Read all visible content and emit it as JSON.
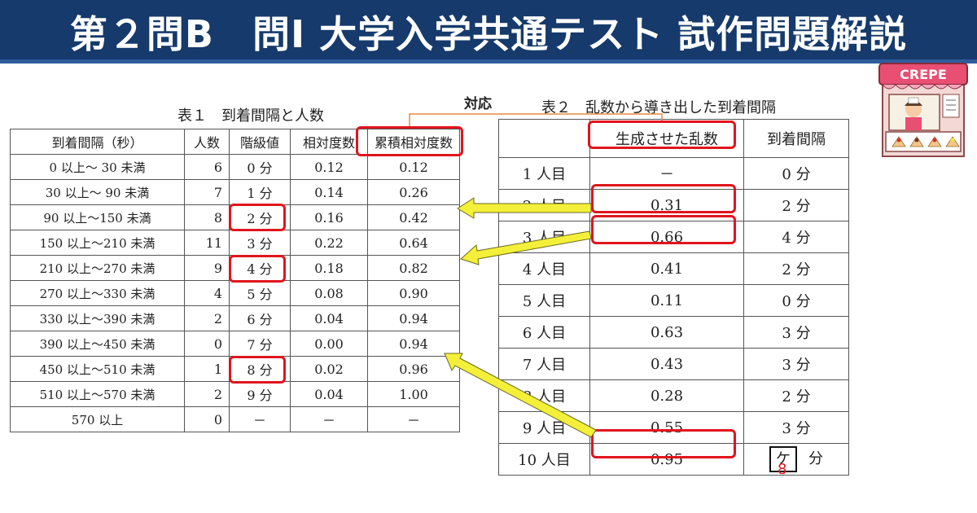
{
  "banner": {
    "title": "第２問B　問I 大学入学共通テスト 試作問題解説"
  },
  "table1": {
    "caption": "表１　到着間隔と人数",
    "headers": [
      "到着間隔（秒）",
      "人数",
      "階級値",
      "相対度数",
      "累積相対度数"
    ],
    "rows": [
      [
        "0 以上～ 30 未満",
        "6",
        "0 分",
        "0.12",
        "0.12"
      ],
      [
        "30 以上～ 90 未満",
        "7",
        "1 分",
        "0.14",
        "0.26"
      ],
      [
        "90 以上～150 未満",
        "8",
        "2 分",
        "0.16",
        "0.42"
      ],
      [
        "150 以上～210 未満",
        "11",
        "3 分",
        "0.22",
        "0.64"
      ],
      [
        "210 以上～270 未満",
        "9",
        "4 分",
        "0.18",
        "0.82"
      ],
      [
        "270 以上～330 未満",
        "4",
        "5 分",
        "0.08",
        "0.90"
      ],
      [
        "330 以上～390 未満",
        "2",
        "6 分",
        "0.04",
        "0.94"
      ],
      [
        "390 以上～450 未満",
        "0",
        "7 分",
        "0.00",
        "0.94"
      ],
      [
        "450 以上～510 未満",
        "1",
        "8 分",
        "0.02",
        "0.96"
      ],
      [
        "510 以上～570 未満",
        "2",
        "9 分",
        "0.04",
        "1.00"
      ],
      [
        "570 以上",
        "0",
        "－",
        "－",
        "－"
      ]
    ]
  },
  "table2": {
    "caption": "表２　乱数から導き出した到着間隔",
    "headers": [
      "",
      "生成させた乱数",
      "到着間隔"
    ],
    "rows": [
      [
        "1 人目",
        "－",
        "0 分"
      ],
      [
        "2 人目",
        "0.31",
        "2 分"
      ],
      [
        "3 人目",
        "0.66",
        "4 分"
      ],
      [
        "4 人目",
        "0.41",
        "2 分"
      ],
      [
        "5 人目",
        "0.11",
        "0 分"
      ],
      [
        "6 人目",
        "0.63",
        "3 分"
      ],
      [
        "7 人目",
        "0.43",
        "3 分"
      ],
      [
        "8 人目",
        "0.28",
        "2 分"
      ],
      [
        "9 人目",
        "0.55",
        "3 分"
      ],
      [
        "10 人目",
        "0.95",
        ""
      ]
    ],
    "answer_box": "ケ",
    "answer_unit": "分",
    "answer_value": "8"
  },
  "labels": {
    "correspondence": "対応",
    "shop_sign": "CREPE"
  },
  "colors": {
    "banner": "#163a6b",
    "highlight": "#e0151d",
    "arrow": "#f4f03a"
  }
}
